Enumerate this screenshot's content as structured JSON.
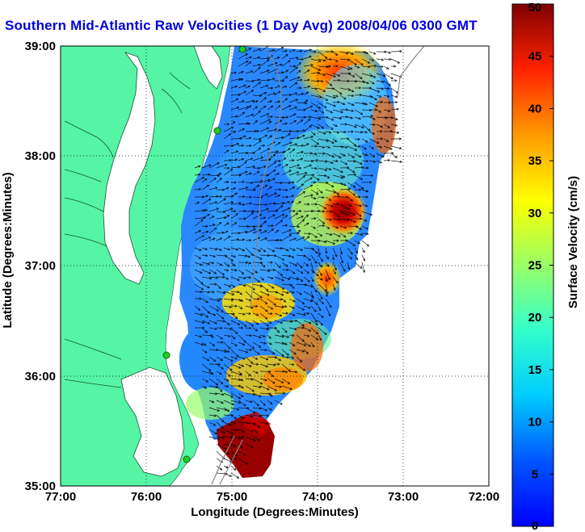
{
  "title": "Southern Mid-Atlantic Raw Velocities (1 Day Avg) 2008/04/06 0300 GMT",
  "axes": {
    "xlabel": "Longitude (Degrees:Minutes)",
    "ylabel": "Latitude (Degrees:Minutes)",
    "x_ticks": [
      "77:00",
      "76:00",
      "75:00",
      "74:00",
      "73:00",
      "72:00"
    ],
    "y_ticks": [
      "39:00",
      "38:00",
      "37:00",
      "36:00",
      "35:00"
    ],
    "grid": "dotted"
  },
  "colorbar": {
    "label": "Surface Velocity (cm/s)",
    "ticks": [
      "50",
      "45",
      "40",
      "35",
      "30",
      "25",
      "20",
      "15",
      "10",
      "5",
      "0"
    ],
    "min": 0,
    "max": 50,
    "colormap": "jet"
  },
  "colors": {
    "land": "#55f5a5",
    "title": "#0000dd",
    "radar_station": "#22cc22"
  }
}
